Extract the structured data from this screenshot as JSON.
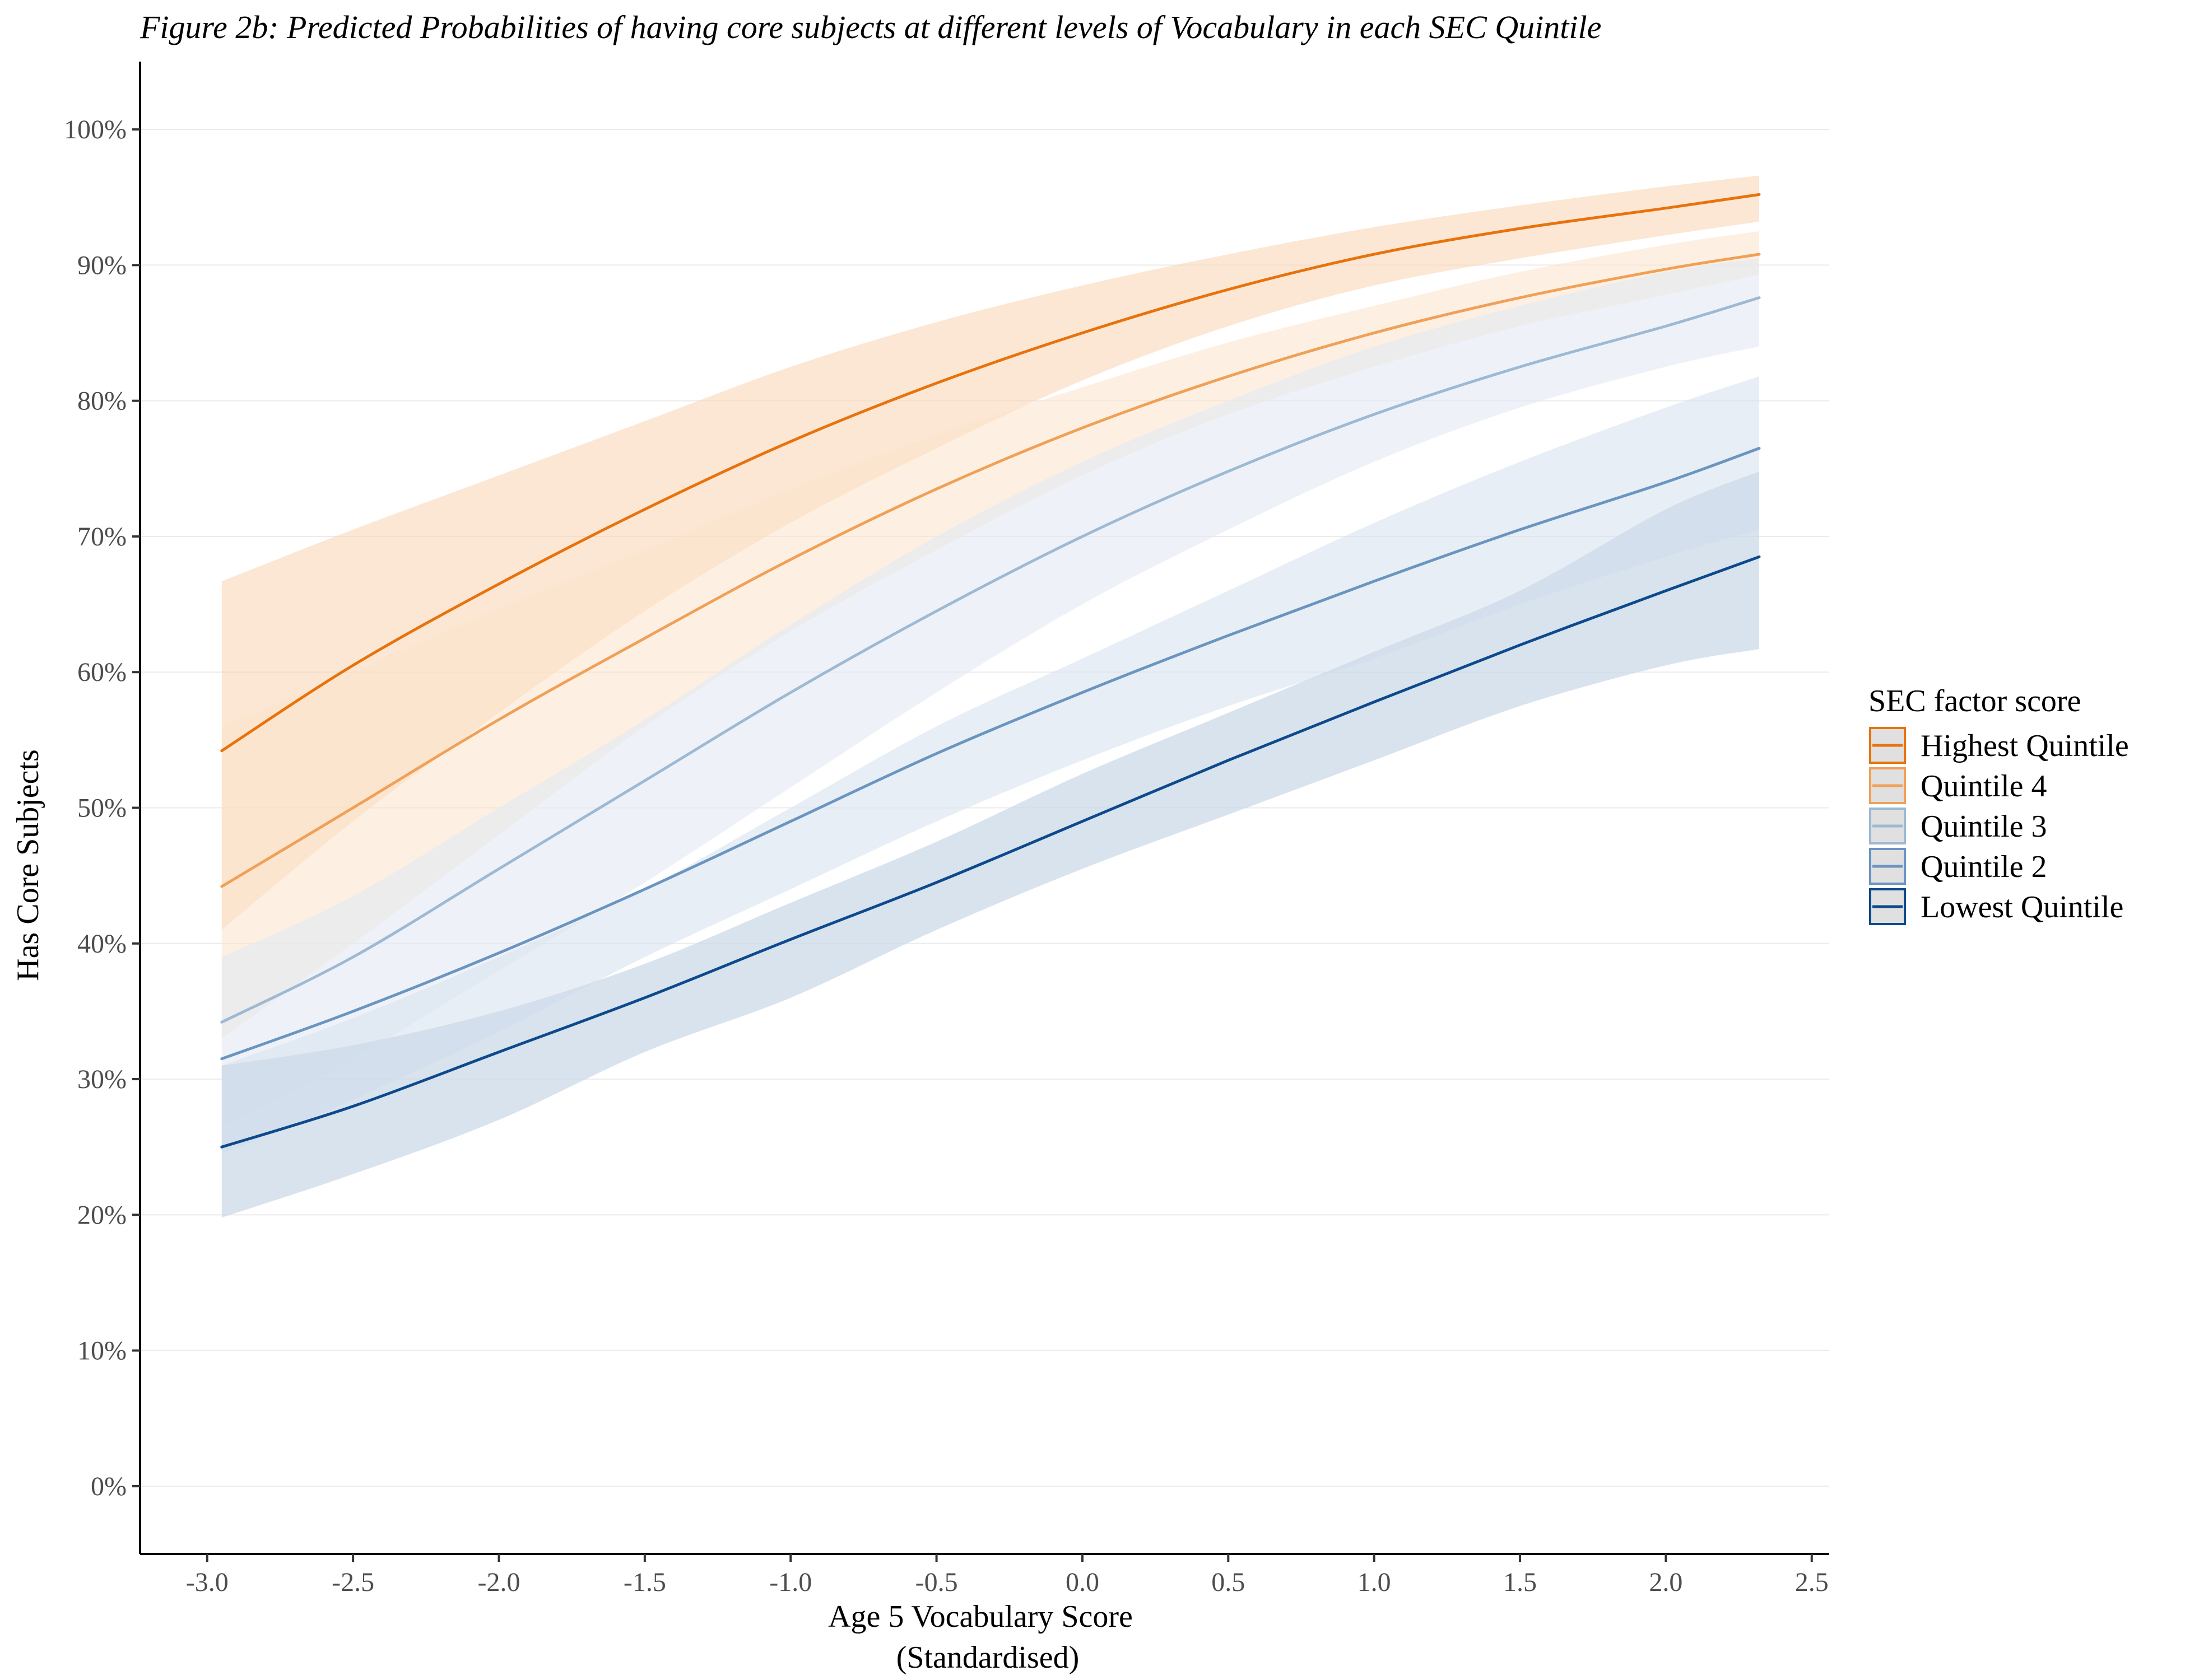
{
  "chart_data": {
    "type": "line",
    "title": "Figure 2b: Predicted Probabilities of having core subjects at different levels of Vocabulary in each SEC Quintile",
    "xlabel": [
      "Age 5 Vocabulary Score",
      "(Standardised)"
    ],
    "ylabel": "Has Core Subjects",
    "xlim": [
      -3.23,
      2.56
    ],
    "ylim": [
      -0.05,
      1.05
    ],
    "xticks": [
      -3.0,
      -2.5,
      -2.0,
      -1.5,
      -1.0,
      -0.5,
      0.0,
      0.5,
      1.0,
      1.5,
      2.0,
      2.5
    ],
    "xtick_labels": [
      "-3.0",
      "-2.5",
      "-2.0",
      "-1.5",
      "-1.0",
      "-0.5",
      "0.0",
      "0.5",
      "1.0",
      "1.5",
      "2.0",
      "2.5"
    ],
    "yticks": [
      0,
      0.1,
      0.2,
      0.3,
      0.4,
      0.5,
      0.6,
      0.7,
      0.8,
      0.9,
      1.0
    ],
    "ytick_labels": [
      "0%",
      "10%",
      "20%",
      "30%",
      "40%",
      "50%",
      "60%",
      "70%",
      "80%",
      "90%",
      "100%"
    ],
    "grid": "horizontal",
    "legend": {
      "title": "SEC factor score",
      "position": "right"
    },
    "x": [
      -2.95,
      -2.5,
      -2.0,
      -1.5,
      -1.0,
      -0.5,
      0.0,
      0.5,
      1.0,
      1.5,
      2.0,
      2.32
    ],
    "series": [
      {
        "name": "Highest Quintile",
        "color": "#E8720C",
        "band_color": "#FAD3B0",
        "band_opacity": 0.55,
        "values": [
          0.542,
          0.605,
          0.665,
          0.72,
          0.77,
          0.813,
          0.85,
          0.882,
          0.908,
          0.927,
          0.942,
          0.952
        ],
        "lower": [
          0.41,
          0.49,
          0.57,
          0.645,
          0.71,
          0.765,
          0.815,
          0.855,
          0.885,
          0.905,
          0.922,
          0.932
        ],
        "upper": [
          0.667,
          0.705,
          0.745,
          0.785,
          0.825,
          0.858,
          0.885,
          0.908,
          0.928,
          0.944,
          0.958,
          0.966
        ]
      },
      {
        "name": "Quintile 4",
        "color": "#F0A057",
        "band_color": "#FBE3CB",
        "band_opacity": 0.55,
        "values": [
          0.442,
          0.5,
          0.565,
          0.625,
          0.683,
          0.735,
          0.78,
          0.818,
          0.85,
          0.876,
          0.897,
          0.908
        ],
        "lower": [
          0.33,
          0.4,
          0.48,
          0.56,
          0.63,
          0.69,
          0.745,
          0.79,
          0.825,
          0.855,
          0.878,
          0.893
        ],
        "upper": [
          0.56,
          0.6,
          0.647,
          0.69,
          0.735,
          0.775,
          0.81,
          0.843,
          0.87,
          0.895,
          0.915,
          0.925
        ]
      },
      {
        "name": "Quintile 3",
        "color": "#9DB9D3",
        "band_color": "#E2EAF3",
        "band_opacity": 0.6,
        "values": [
          0.342,
          0.39,
          0.455,
          0.52,
          0.585,
          0.645,
          0.7,
          0.748,
          0.79,
          0.825,
          0.855,
          0.876
        ],
        "lower": [
          0.265,
          0.315,
          0.38,
          0.445,
          0.515,
          0.585,
          0.65,
          0.705,
          0.755,
          0.795,
          0.825,
          0.84
        ],
        "upper": [
          0.39,
          0.435,
          0.5,
          0.565,
          0.635,
          0.7,
          0.755,
          0.8,
          0.84,
          0.87,
          0.895,
          0.905
        ]
      },
      {
        "name": "Quintile 2",
        "color": "#6A95C0",
        "band_color": "#D9E3EF",
        "band_opacity": 0.6,
        "values": [
          0.315,
          0.35,
          0.393,
          0.44,
          0.49,
          0.54,
          0.585,
          0.627,
          0.667,
          0.705,
          0.74,
          0.765
        ],
        "lower": [
          0.245,
          0.285,
          0.335,
          0.39,
          0.44,
          0.49,
          0.535,
          0.575,
          0.61,
          0.65,
          0.685,
          0.705
        ],
        "upper": [
          0.31,
          0.345,
          0.39,
          0.44,
          0.5,
          0.56,
          0.61,
          0.66,
          0.71,
          0.755,
          0.795,
          0.818
        ]
      },
      {
        "name": "Lowest Quintile",
        "color": "#0D4A8C",
        "band_color": "#CCD9E8",
        "band_opacity": 0.75,
        "values": [
          0.25,
          0.28,
          0.32,
          0.36,
          0.403,
          0.445,
          0.49,
          0.535,
          0.578,
          0.62,
          0.66,
          0.685
        ],
        "lower": [
          0.198,
          0.23,
          0.27,
          0.32,
          0.36,
          0.41,
          0.455,
          0.495,
          0.535,
          0.575,
          0.605,
          0.617
        ],
        "upper": [
          0.31,
          0.325,
          0.35,
          0.385,
          0.43,
          0.475,
          0.525,
          0.57,
          0.615,
          0.66,
          0.72,
          0.748
        ]
      }
    ]
  }
}
